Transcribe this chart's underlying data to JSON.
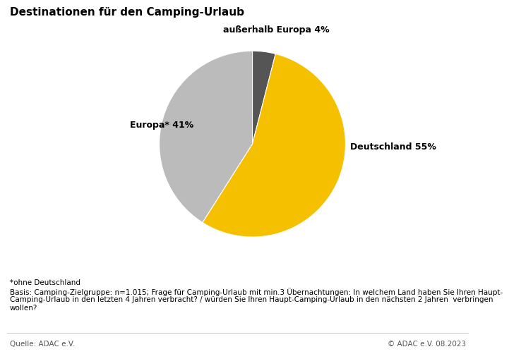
{
  "title": "Destinationen für den Camping-Urlaub",
  "slices": [
    4,
    55,
    41
  ],
  "colors": [
    "#555555",
    "#F5C000",
    "#BBBBBB"
  ],
  "label_deutschland": "Deutschland 55%",
  "label_europa": "Europa* 41%",
  "label_ausserhalb": "außerhalb Europa 4%",
  "footnote_line1": "*ohne Deutschland",
  "footnote_line2": "Basis: Camping-Zielgruppe: n=1.015; Frage für Camping-Urlaub mit min.3 Übernachtungen: In welchem Land haben Sie Ihren Haupt-",
  "footnote_line3": "Camping-Urlaub in den letzten 4 Jahren verbracht? / würden Sie Ihren Haupt-Camping-Urlaub in den nächsten 2 Jahren  verbringen",
  "footnote_line4": "wollen?",
  "footer_left": "Quelle: ADAC e.V.",
  "footer_right": "© ADAC e.V. 08.2023",
  "background_color": "#FFFFFF",
  "title_fontsize": 11,
  "label_fontsize": 9,
  "footnote_fontsize": 7.5,
  "footer_fontsize": 7.5,
  "startangle": 90
}
